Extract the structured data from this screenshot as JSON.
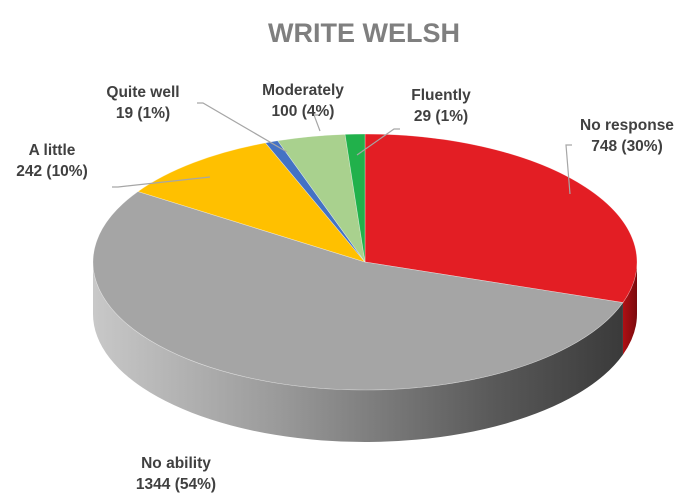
{
  "chart_data": {
    "type": "pie",
    "title": "WRITE WELSH",
    "style": "3d",
    "slices": [
      {
        "label": "No response",
        "value": 748,
        "pct": "30%",
        "color": "#e31e24"
      },
      {
        "label": "No ability",
        "value": 1344,
        "pct": "54%",
        "color": "#a5a5a5"
      },
      {
        "label": "A little",
        "value": 242,
        "pct": "10%",
        "color": "#ffc000"
      },
      {
        "label": "Quite well",
        "value": 19,
        "pct": "1%",
        "color": "#4472c4"
      },
      {
        "label": "Moderately",
        "value": 100,
        "pct": "4%",
        "color": "#a9d18e"
      },
      {
        "label": "Fluently",
        "value": 29,
        "pct": "1%",
        "color": "#21b14b"
      }
    ]
  }
}
